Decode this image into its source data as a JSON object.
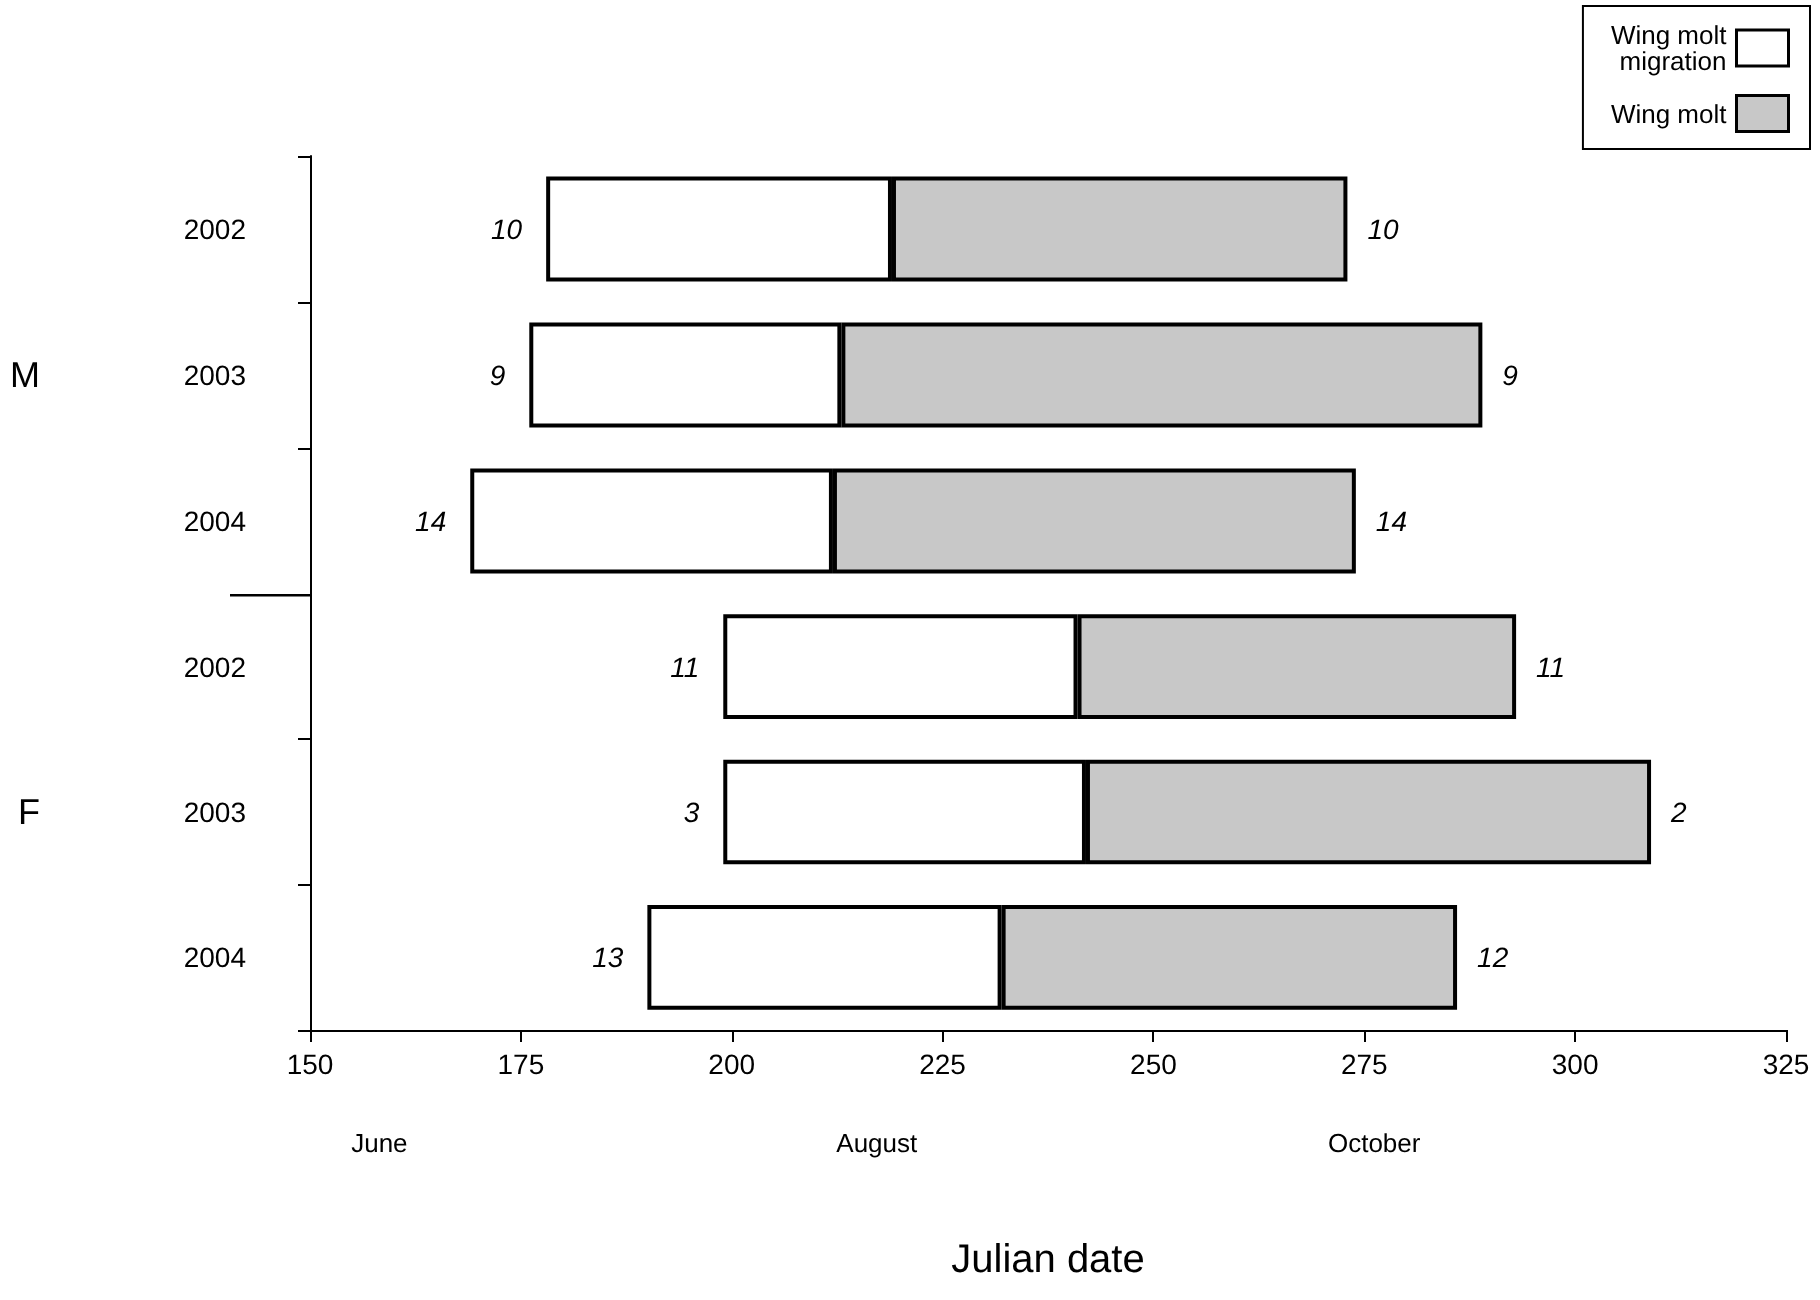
{
  "chart_data": [
    {
      "type": "bar",
      "orientation": "horizontal",
      "ylabel": "M",
      "tick_labels": "y",
      "categories": [
        "2002",
        "2003",
        "2004"
      ],
      "series": [
        {
          "name": "Wing molt\nmigration",
          "color": "#ffffff",
          "base": [
            178,
            176,
            169
          ],
          "values": [
            41,
            37,
            43
          ]
        },
        {
          "name": "Wing molt",
          "color": "#c8c8c8",
          "base": [
            219,
            213,
            212
          ],
          "values": [
            54,
            76,
            62
          ]
        }
      ],
      "xlim": [
        150,
        325
      ],
      "xticks": [
        150,
        175,
        200,
        225,
        250,
        275,
        300,
        325
      ],
      "annotations": [
        {
          "text": "10",
          "x": 178,
          "y": "2002"
        },
        {
          "text": "9",
          "x": 176,
          "y": "2003"
        },
        {
          "text": "14",
          "x": 169,
          "y": "2004"
        },
        {
          "text": "10",
          "x": 273,
          "y": "2002"
        },
        {
          "text": "9",
          "x": 289,
          "y": "2003"
        },
        {
          "text": "14",
          "x": 274,
          "y": "2004"
        }
      ],
      "legend": "top right",
      "grid": false
    },
    {
      "type": "bar",
      "orientation": "horizontal",
      "ylabel": "F",
      "xlabel": "Julian date",
      "categories": [
        "2002",
        "2003",
        "2004"
      ],
      "series": [
        {
          "color": "#ffffff",
          "base": [
            199,
            199,
            190
          ],
          "values": [
            42,
            43,
            42
          ]
        },
        {
          "color": "#c8c8c8",
          "base": [
            241,
            242,
            232
          ],
          "values": [
            52,
            67,
            54
          ]
        }
      ],
      "xlim": [
        150,
        325
      ],
      "xticks": [
        150,
        175,
        200,
        225,
        250,
        275,
        300,
        325
      ],
      "annotations": [
        {
          "text": "11",
          "x": 199,
          "y": "2002"
        },
        {
          "text": "3",
          "x": 199,
          "y": "2003"
        },
        {
          "text": "13",
          "x": 190,
          "y": "2004"
        },
        {
          "text": "11",
          "x": 293,
          "y": "2002"
        },
        {
          "text": "2",
          "x": 309,
          "y": "2003"
        },
        {
          "text": "12",
          "x": 286,
          "y": "2004"
        },
        "June",
        "August",
        "October"
      ],
      "grid": false
    }
  ]
}
